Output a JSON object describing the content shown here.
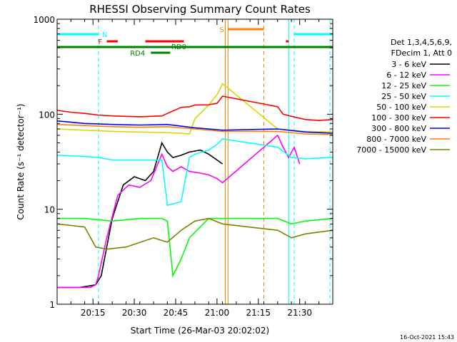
{
  "chart_data": {
    "type": "line",
    "title": "RHESSI Observing Summary Count Rates",
    "xlabel": "Start Time (26-Mar-03 20:02:02)",
    "ylabel": "Count Rate (s⁻¹ detector⁻¹)",
    "footer_timestamp": "16-Oct-2021 15:43",
    "y_scale": "log",
    "ylim": [
      1,
      1000
    ],
    "xlim_minutes": [
      0,
      100
    ],
    "x_tick_labels": [
      "20:15",
      "20:30",
      "20:45",
      "21:00",
      "21:15",
      "21:30"
    ],
    "x_tick_minutes": [
      13,
      28,
      43,
      58,
      73,
      88
    ],
    "y_tick_labels": [
      "1",
      "10",
      "100",
      "1000"
    ],
    "y_tick_values": [
      1,
      10,
      100,
      1000
    ],
    "legend_header": [
      "Det 1,3,4,5,6,9,",
      "FDecim 1, Att 0"
    ],
    "legend_position": "right",
    "series": [
      {
        "name": "3 - 6 keV",
        "color": "#000000",
        "x": [
          0,
          8,
          14,
          16,
          18,
          20,
          24,
          28,
          32,
          35,
          38,
          40,
          42,
          45,
          48,
          52,
          55,
          58,
          60
        ],
        "y": [
          1.5,
          1.5,
          1.6,
          2,
          4,
          8,
          18,
          22,
          20,
          25,
          50,
          40,
          35,
          37,
          40,
          42,
          38,
          33,
          30
        ]
      },
      {
        "name": "6 - 12 keV",
        "color": "#ff00ff",
        "x": [
          0,
          12,
          14,
          15,
          18,
          22,
          26,
          30,
          34,
          38,
          40,
          42,
          45,
          48,
          52,
          55,
          58,
          60,
          80,
          82,
          84,
          86,
          88
        ],
        "y": [
          1.5,
          1.5,
          1.6,
          2,
          5,
          14,
          18,
          17,
          20,
          38,
          28,
          25,
          28,
          25,
          24,
          23,
          21,
          19,
          60,
          45,
          35,
          45,
          30
        ]
      },
      {
        "name": "12 - 25 keV",
        "color": "#00ff00",
        "x": [
          0,
          10,
          20,
          30,
          38,
          40,
          42,
          45,
          48,
          55,
          60,
          80,
          85,
          90,
          100
        ],
        "y": [
          8,
          8,
          7.5,
          8,
          8,
          7.5,
          2,
          3,
          5,
          8,
          8,
          8,
          7,
          7.5,
          8
        ]
      },
      {
        "name": "25 - 50 keV",
        "color": "#00ffff",
        "x": [
          0,
          10,
          15,
          20,
          30,
          38,
          40,
          45,
          48,
          50,
          55,
          58,
          60,
          80,
          85,
          90,
          100
        ],
        "y": [
          37,
          36,
          35,
          33,
          33,
          33,
          11,
          12,
          35,
          38,
          42,
          48,
          55,
          45,
          35,
          34,
          35
        ]
      },
      {
        "name": "50 - 100 keV",
        "color": "#d8d800",
        "x": [
          0,
          10,
          20,
          30,
          40,
          45,
          48,
          50,
          55,
          58,
          60,
          80,
          85,
          90,
          100
        ],
        "y": [
          70,
          68,
          66,
          65,
          64,
          63,
          62,
          90,
          125,
          160,
          210,
          70,
          68,
          66,
          65
        ]
      },
      {
        "name": "100 - 300 keV",
        "color": "#ff0000",
        "x": [
          0,
          5,
          10,
          15,
          20,
          30,
          38,
          40,
          45,
          48,
          50,
          55,
          58,
          60,
          80,
          82,
          85,
          90,
          95,
          100
        ],
        "y": [
          110,
          105,
          102,
          98,
          96,
          94,
          96,
          102,
          118,
          120,
          125,
          126,
          130,
          155,
          120,
          100,
          95,
          88,
          86,
          88
        ]
      },
      {
        "name": "300 - 800 keV",
        "color": "#0000ff",
        "x": [
          0,
          10,
          20,
          30,
          40,
          50,
          60,
          80,
          90,
          100
        ],
        "y": [
          85,
          80,
          78,
          77,
          78,
          72,
          68,
          70,
          65,
          63
        ]
      },
      {
        "name": "800 - 7000 keV",
        "color": "#ff8000",
        "x": [
          0,
          10,
          20,
          30,
          40,
          50,
          60,
          80,
          90,
          100
        ],
        "y": [
          78,
          76,
          74,
          73,
          74,
          70,
          66,
          66,
          62,
          61
        ]
      },
      {
        "name": "7000 - 15000 keV",
        "color": "#808000",
        "x": [
          0,
          10,
          14,
          18,
          25,
          35,
          40,
          45,
          50,
          55,
          60,
          80,
          85,
          90,
          100
        ],
        "y": [
          7,
          6.5,
          4,
          3.8,
          4,
          5,
          4.5,
          6,
          7.5,
          8,
          7,
          6,
          5,
          5.5,
          6
        ]
      }
    ],
    "flag_bars": [
      {
        "label": "N",
        "color": "#00ffff",
        "segments": [
          [
            0,
            15
          ],
          [
            86,
            100
          ]
        ]
      },
      {
        "label": "F",
        "color": "#ff0000",
        "segments": [
          [
            18,
            22
          ],
          [
            32,
            46
          ],
          [
            83,
            84
          ]
        ]
      },
      {
        "label": "S",
        "color": "#ff8000",
        "segments": [
          [
            62,
            75
          ]
        ]
      },
      {
        "label": "RD0",
        "color": "#008000",
        "segments": [
          [
            0,
            100
          ]
        ]
      },
      {
        "label": "RD4",
        "color": "#008000",
        "segments": [
          [
            34,
            41
          ]
        ]
      }
    ],
    "vertical_lines": [
      {
        "x": 15,
        "color": "#00ffff",
        "dashed": true
      },
      {
        "x": 61,
        "color": "#ff8000",
        "dashed": false
      },
      {
        "x": 62,
        "color": "#ff8000",
        "dashed": false
      },
      {
        "x": 75,
        "color": "#ff8000",
        "dashed": true
      },
      {
        "x": 84,
        "color": "#00ffff",
        "dashed": false
      },
      {
        "x": 86,
        "color": "#00ffff",
        "dashed": true
      },
      {
        "x": 99,
        "color": "#00ffff",
        "dashed": true
      }
    ]
  }
}
